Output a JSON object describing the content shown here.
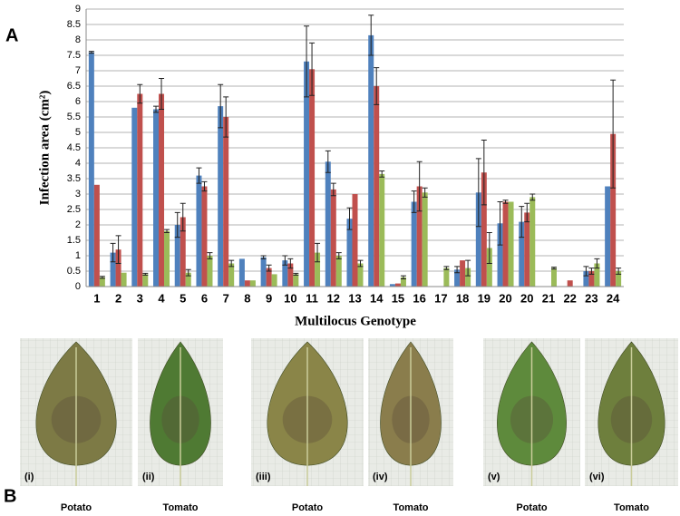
{
  "panel_labels": [
    "A",
    "B"
  ],
  "chart_data": {
    "type": "bar",
    "y_label": "Infection area (cm²)",
    "x_label": "Multilocus Genotype",
    "categories": [
      "1",
      "2",
      "3",
      "4",
      "5",
      "6",
      "7",
      "8",
      "9",
      "10",
      "11",
      "12",
      "13",
      "14",
      "15",
      "16",
      "17",
      "18",
      "19",
      "20",
      "20",
      "21",
      "22",
      "23",
      "24"
    ],
    "series": [
      {
        "color": "#4f81bd",
        "values": [
          7.6,
          1.1,
          5.8,
          5.75,
          2.0,
          3.6,
          5.85,
          0.9,
          0.95,
          0.85,
          7.3,
          4.05,
          2.2,
          8.15,
          0.08,
          2.75,
          null,
          0.55,
          3.05,
          2.05,
          2.1,
          null,
          null,
          0.5,
          3.25
        ],
        "errors": [
          0.03,
          0.3,
          0,
          0.1,
          0.4,
          0.25,
          0.7,
          0,
          0.05,
          0.15,
          1.15,
          0.35,
          0.35,
          0.65,
          0,
          0.35,
          null,
          0.1,
          1.1,
          0.7,
          0.5,
          null,
          null,
          0.15,
          0
        ]
      },
      {
        "color": "#c0504d",
        "values": [
          3.3,
          1.2,
          6.25,
          6.25,
          2.25,
          3.25,
          5.5,
          0.2,
          0.6,
          0.75,
          7.05,
          3.15,
          3.0,
          6.5,
          0.1,
          3.25,
          null,
          0.85,
          3.7,
          2.75,
          2.4,
          null,
          0.2,
          0.5,
          4.95
        ],
        "errors": [
          0,
          0.45,
          0.3,
          0.5,
          0.45,
          0.15,
          0.65,
          0,
          0.1,
          0.15,
          0.85,
          0.2,
          0,
          0.6,
          0,
          0.8,
          null,
          0,
          1.05,
          0.05,
          0.3,
          null,
          0,
          0.1,
          1.75
        ]
      },
      {
        "color": "#9bbb59",
        "values": [
          0.3,
          0.45,
          0.4,
          1.8,
          0.45,
          1.0,
          0.75,
          0.2,
          0.4,
          0.4,
          1.1,
          1.0,
          0.75,
          3.65,
          0.3,
          3.05,
          0.6,
          0.6,
          1.25,
          2.75,
          2.9,
          0.6,
          null,
          0.75,
          0.5
        ],
        "errors": [
          0.03,
          0,
          0.03,
          0.05,
          0.1,
          0.1,
          0.1,
          0,
          0,
          0.03,
          0.3,
          0.1,
          0.1,
          0.1,
          0.05,
          0.15,
          0.05,
          0.25,
          0.5,
          0,
          0.1,
          0.03,
          null,
          0.15,
          0.1
        ]
      }
    ],
    "ylim": [
      0,
      9
    ],
    "yticks": [
      0,
      0.5,
      1,
      1.5,
      2,
      2.5,
      3,
      3.5,
      4,
      4.5,
      5,
      5.5,
      6,
      6.5,
      7,
      7.5,
      8,
      8.5,
      9
    ],
    "grid": true
  },
  "photos": [
    {
      "label": "(i)",
      "caption": "Potato"
    },
    {
      "label": "(ii)",
      "caption": "Tomato"
    },
    {
      "label": "(iii)",
      "caption": "Potato"
    },
    {
      "label": "(iv)",
      "caption": "Tomato"
    },
    {
      "label": "(v)",
      "caption": "Potato"
    },
    {
      "label": "(vi)",
      "caption": "Tomato"
    }
  ]
}
